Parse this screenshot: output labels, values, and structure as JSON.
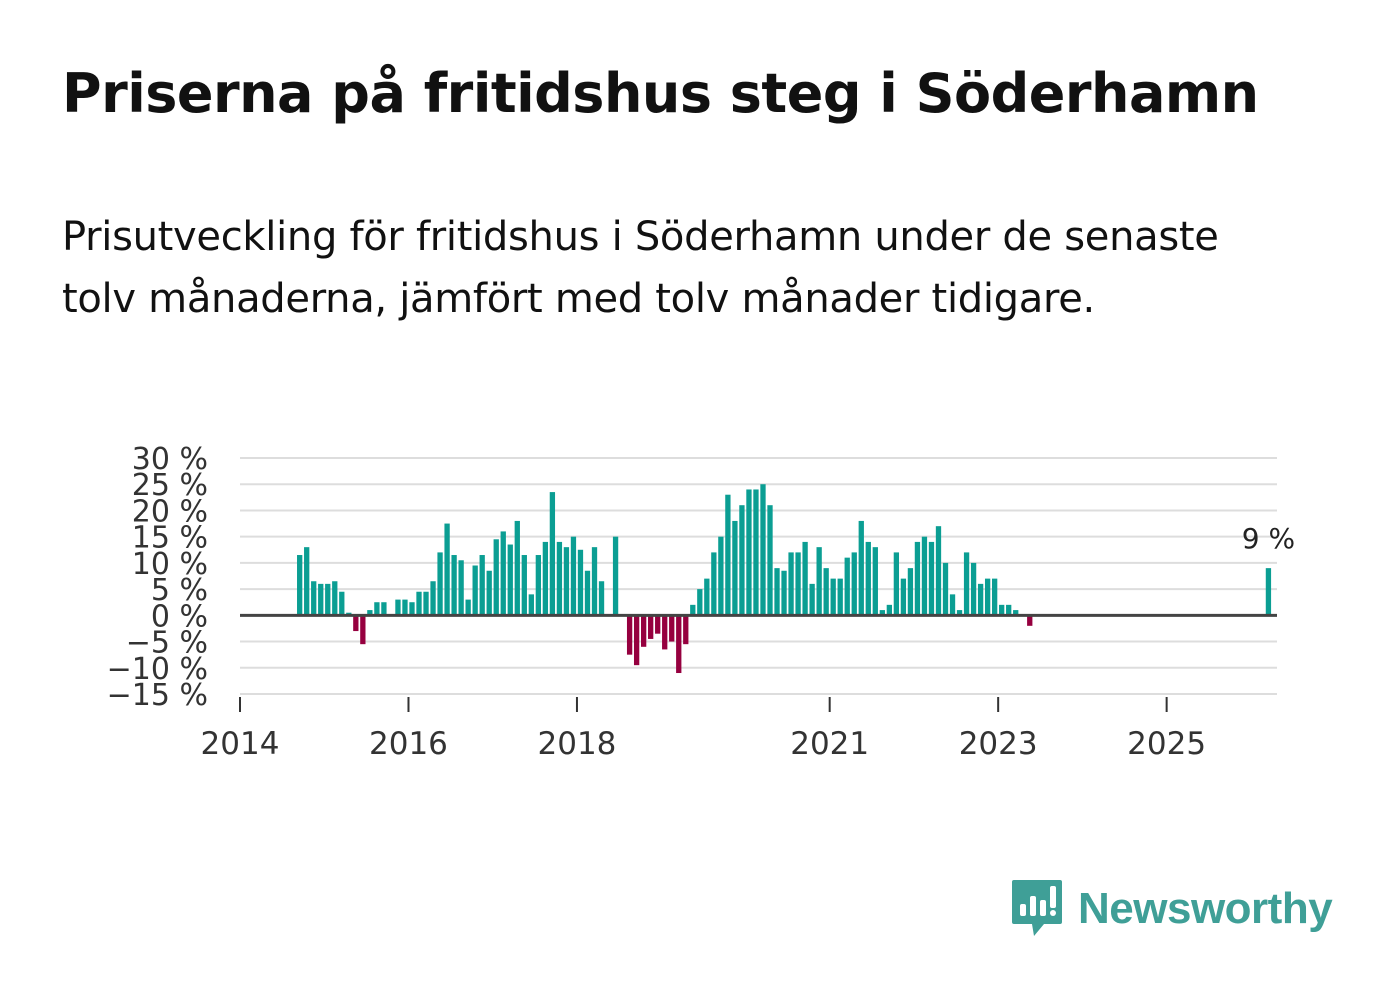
{
  "title": "Priserna på fritidshus steg i Söderhamn",
  "subtitle": "Prisutveckling för fritidshus i Söderhamn under de senaste tolv månaderna, jämfört med tolv månader tidigare.",
  "brand": "Newsworthy",
  "colors": {
    "positive": "#0b9e93",
    "negative": "#96003f",
    "grid": "#dddddd",
    "zero": "#444444",
    "brand": "#3f9f97"
  },
  "chart_data": {
    "type": "bar",
    "ylim": [
      -15,
      30
    ],
    "y_ticks": [
      30,
      25,
      20,
      15,
      10,
      5,
      0,
      -5,
      -10,
      -15
    ],
    "y_tick_labels": [
      "30 %",
      "25 %",
      "20 %",
      "15 %",
      "10 %",
      "5 %",
      "0 %",
      "−5 %",
      "−10 %",
      "−15 %"
    ],
    "x_ticks": [
      {
        "label": "2014",
        "month": 0
      },
      {
        "label": "2016",
        "month": 24
      },
      {
        "label": "2018",
        "month": 48
      },
      {
        "label": "2021",
        "month": 84
      },
      {
        "label": "2023",
        "month": 108
      },
      {
        "label": "2025",
        "month": 132
      }
    ],
    "x_range_months": [
      0,
      148
    ],
    "start": "2014-01",
    "values": [
      null,
      null,
      null,
      null,
      null,
      null,
      null,
      null,
      11.5,
      13,
      6.5,
      6,
      6,
      6.5,
      4.5,
      0.5,
      -3,
      -5.5,
      1,
      2.5,
      2.5,
      null,
      3,
      3,
      2.5,
      4.5,
      4.5,
      6.5,
      12,
      17.5,
      11.5,
      10.5,
      3,
      9.5,
      11.5,
      8.5,
      14.5,
      16,
      13.5,
      18,
      11.5,
      4,
      11.5,
      14,
      23.5,
      14,
      13,
      15,
      12.5,
      8.5,
      13,
      6.5,
      null,
      15,
      null,
      -7.5,
      -9.5,
      -6,
      -4.5,
      -3.5,
      -6.5,
      -5,
      -11,
      -5.5,
      2,
      5,
      7,
      12,
      15,
      23,
      18,
      21,
      24,
      24,
      25,
      21,
      9,
      8.5,
      12,
      12,
      14,
      6,
      13,
      9,
      7,
      7,
      11,
      12,
      18,
      14,
      13,
      1,
      2,
      12,
      7,
      9,
      14,
      15,
      14,
      17,
      10,
      4,
      1,
      12,
      10,
      6,
      7,
      7,
      2,
      2,
      1,
      null,
      -2,
      null,
      null,
      null,
      null,
      null,
      null,
      null,
      null,
      null,
      null,
      null,
      null,
      null,
      null,
      null,
      null,
      null,
      null,
      null,
      null,
      null,
      null,
      null,
      null,
      null,
      null,
      null,
      null,
      null,
      null,
      null,
      null,
      null,
      9
    ],
    "data_label": "9 %"
  }
}
